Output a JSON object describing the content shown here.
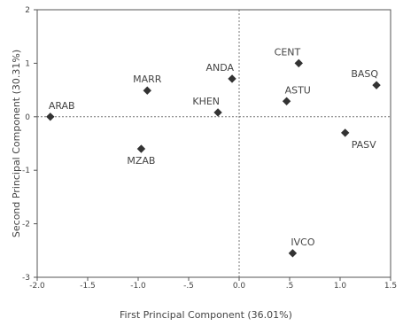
{
  "chart_data": {
    "type": "scatter",
    "title": "",
    "xlabel": "First Principal Component (36.01%)",
    "ylabel": "Second Principal Component (30.31%)",
    "xlim": [
      -2.0,
      1.5
    ],
    "ylim": [
      -3.0,
      2.0
    ],
    "x_ticks": [
      -2.0,
      -1.5,
      -1.0,
      -0.5,
      0.0,
      0.5,
      1.0,
      1.5
    ],
    "x_tick_labels": [
      "-2.0",
      "-1.5",
      "-1.0",
      "-.5",
      "0.0",
      ".5",
      "1.0",
      "1.5"
    ],
    "y_ticks": [
      -3,
      -2,
      -1,
      0,
      1,
      2
    ],
    "y_tick_labels": [
      "-3",
      "-2",
      "-1",
      "0",
      "1",
      "2"
    ],
    "reference_lines": {
      "x": 0,
      "y": 0,
      "style": "dotted"
    },
    "grid": false,
    "marker": "diamond",
    "marker_color": "#333333",
    "points": [
      {
        "label": "ARAB",
        "x": -1.87,
        "y": 0.0,
        "label_pos": "above-right"
      },
      {
        "label": "MARR",
        "x": -0.91,
        "y": 0.49,
        "label_pos": "above"
      },
      {
        "label": "MZAB",
        "x": -0.97,
        "y": -0.6,
        "label_pos": "below"
      },
      {
        "label": "KHEN",
        "x": -0.21,
        "y": 0.08,
        "label_pos": "above-left"
      },
      {
        "label": "ANDA",
        "x": -0.07,
        "y": 0.71,
        "label_pos": "above-left"
      },
      {
        "label": "CENT",
        "x": 0.59,
        "y": 1.0,
        "label_pos": "above-left"
      },
      {
        "label": "ASTU",
        "x": 0.47,
        "y": 0.29,
        "label_pos": "above-right"
      },
      {
        "label": "BASQ",
        "x": 1.36,
        "y": 0.59,
        "label_pos": "above-left"
      },
      {
        "label": "PASV",
        "x": 1.05,
        "y": -0.3,
        "label_pos": "below-right"
      },
      {
        "label": "IVCO",
        "x": 0.53,
        "y": -2.55,
        "label_pos": "above-right"
      }
    ]
  }
}
